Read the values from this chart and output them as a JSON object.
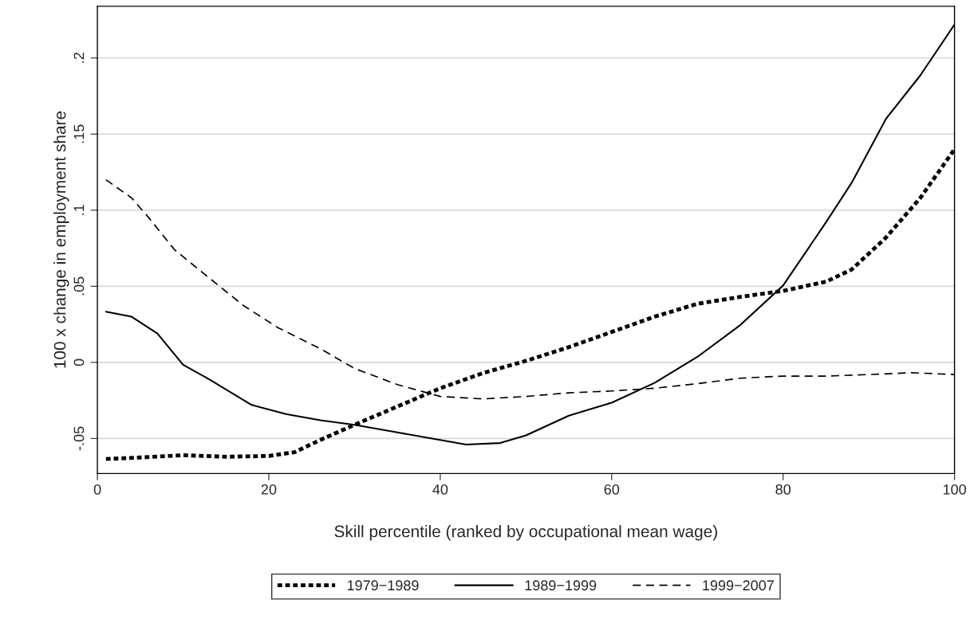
{
  "chart_data": {
    "type": "line",
    "xlabel": "Skill percentile (ranked by occupational mean wage)",
    "ylabel": "100 x change in employment share",
    "xlim": [
      0,
      100
    ],
    "xticks": [
      0,
      20,
      40,
      60,
      80,
      100
    ],
    "ylim": [
      -0.073,
      0.234
    ],
    "yticks": [
      {
        "value": -0.05,
        "label": "-.05"
      },
      0,
      {
        "value": 0.05,
        "label": ".05"
      },
      {
        "value": 0.1,
        "label": ".1"
      },
      {
        "value": 0.15,
        "label": ".15"
      },
      {
        "value": 0.2,
        "label": ".2"
      }
    ],
    "grid": "y",
    "legend": "bottom",
    "marker": "none",
    "series": [
      {
        "name": "1979−1989",
        "color": "#000000",
        "line_style": "dotted",
        "x": [
          1,
          5,
          10,
          15,
          20,
          23,
          26,
          30,
          35,
          40,
          45,
          50,
          55,
          60,
          65,
          70,
          75,
          80,
          85,
          88,
          92,
          96,
          100
        ],
        "values": [
          -0.0635,
          -0.0625,
          -0.061,
          -0.062,
          -0.0615,
          -0.059,
          -0.051,
          -0.041,
          -0.029,
          -0.017,
          -0.007,
          0.001,
          0.01,
          0.02,
          0.03,
          0.0385,
          0.043,
          0.047,
          0.053,
          0.061,
          0.082,
          0.108,
          0.14
        ]
      },
      {
        "name": "1989−1999",
        "color": "#000000",
        "line_style": "solid",
        "x": [
          1,
          4,
          7,
          10,
          13,
          18,
          22,
          26,
          30,
          35,
          40,
          43,
          47,
          50,
          55,
          60,
          65,
          70,
          75,
          80,
          85,
          88,
          92,
          96,
          100
        ],
        "values": [
          0.0333,
          0.03,
          0.019,
          -0.0016,
          -0.011,
          -0.028,
          -0.034,
          -0.038,
          -0.041,
          -0.046,
          -0.051,
          -0.054,
          -0.053,
          -0.048,
          -0.035,
          -0.0265,
          -0.0135,
          0.0036,
          0.0245,
          0.0505,
          0.092,
          0.118,
          0.16,
          0.1885,
          0.222
        ]
      },
      {
        "name": "1999−2007",
        "color": "#000000",
        "line_style": "dashed",
        "x": [
          1,
          4,
          6,
          9,
          13,
          17,
          21,
          26,
          30,
          35,
          40,
          45,
          50,
          55,
          60,
          65,
          70,
          75,
          80,
          85,
          90,
          95,
          100
        ],
        "values": [
          0.12,
          0.108,
          0.095,
          0.074,
          0.0557,
          0.0375,
          0.023,
          0.009,
          -0.004,
          -0.0146,
          -0.0224,
          -0.024,
          -0.0224,
          -0.02,
          -0.0188,
          -0.017,
          -0.014,
          -0.0104,
          -0.009,
          -0.009,
          -0.008,
          -0.0068,
          -0.008
        ]
      }
    ]
  }
}
